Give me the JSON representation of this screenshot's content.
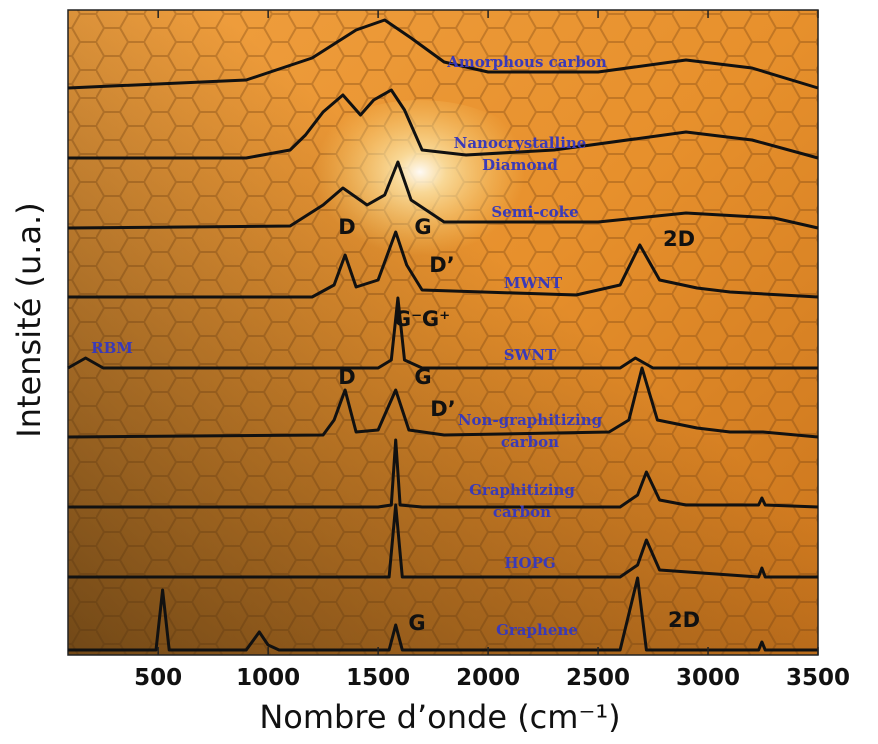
{
  "chart_data": {
    "type": "line",
    "ylabel": "Intensité (u.a.)",
    "xlabel": "Nombre d’onde (cm⁻¹)",
    "xlim": [
      90,
      3500
    ],
    "xticks": [
      500,
      1000,
      1500,
      2000,
      2500,
      3000,
      3500
    ],
    "ylim": [
      0,
      645
    ],
    "series": [
      {
        "name": "Amorphous carbon",
        "color": "#111111",
        "x": [
          90,
          900,
          1200,
          1400,
          1530,
          1650,
          1800,
          2000,
          2500,
          2900,
          3200,
          3500
        ],
        "values": [
          567,
          575,
          597,
          625,
          635,
          617,
          593,
          583,
          583,
          595,
          587,
          567
        ]
      },
      {
        "name": "Nanocrystalline Diamond",
        "color": "#111111",
        "x": [
          90,
          900,
          1100,
          1170,
          1250,
          1340,
          1420,
          1480,
          1560,
          1620,
          1700,
          1900,
          2300,
          2900,
          3200,
          3500
        ],
        "values": [
          497,
          497,
          505,
          520,
          543,
          560,
          540,
          555,
          565,
          545,
          505,
          500,
          505,
          523,
          515,
          497
        ]
      },
      {
        "name": "Semi-coke",
        "color": "#111111",
        "x": [
          90,
          1100,
          1250,
          1340,
          1450,
          1530,
          1590,
          1650,
          1800,
          2500,
          2900,
          3300,
          3500
        ],
        "values": [
          427,
          429,
          450,
          467,
          450,
          460,
          493,
          455,
          433,
          433,
          442,
          437,
          427
        ]
      },
      {
        "name": "MWNT",
        "color": "#111111",
        "x": [
          90,
          1200,
          1300,
          1350,
          1400,
          1500,
          1580,
          1630,
          1700,
          2400,
          2600,
          2690,
          2780,
          2950,
          3100,
          3500
        ],
        "values": [
          358,
          358,
          370,
          400,
          368,
          375,
          423,
          390,
          365,
          360,
          370,
          410,
          375,
          367,
          363,
          358
        ]
      },
      {
        "name": "SWNT",
        "color": "#111111",
        "x": [
          90,
          170,
          250,
          1500,
          1560,
          1590,
          1620,
          1700,
          2600,
          2670,
          2750,
          3500
        ],
        "values": [
          287,
          297,
          287,
          287,
          295,
          357,
          295,
          287,
          287,
          297,
          287,
          287
        ]
      },
      {
        "name": "Non-graphitizing carbon",
        "color": "#111111",
        "x": [
          90,
          1250,
          1300,
          1350,
          1400,
          1500,
          1580,
          1640,
          1800,
          2550,
          2640,
          2700,
          2770,
          2950,
          3100,
          3250,
          3500
        ],
        "values": [
          218,
          220,
          235,
          265,
          223,
          225,
          265,
          225,
          220,
          223,
          235,
          287,
          235,
          227,
          223,
          223,
          218
        ]
      },
      {
        "name": "Graphitizing carbon",
        "color": "#111111",
        "x": [
          90,
          1500,
          1560,
          1580,
          1600,
          1700,
          2600,
          2680,
          2720,
          2780,
          2900,
          3230,
          3245,
          3260,
          3500
        ],
        "values": [
          148,
          148,
          150,
          215,
          150,
          148,
          148,
          160,
          183,
          155,
          150,
          150,
          157,
          150,
          148
        ]
      },
      {
        "name": "HOPG",
        "color": "#111111",
        "x": [
          90,
          1550,
          1580,
          1610,
          2600,
          2680,
          2720,
          2780,
          3230,
          3245,
          3260,
          3500
        ],
        "values": [
          78,
          78,
          150,
          78,
          78,
          90,
          115,
          85,
          78,
          87,
          78,
          78
        ]
      },
      {
        "name": "Graphene",
        "color": "#111111",
        "x": [
          90,
          490,
          520,
          550,
          900,
          960,
          1000,
          1050,
          1550,
          1580,
          1610,
          2600,
          2680,
          2720,
          3230,
          3245,
          3260,
          3500
        ],
        "values": [
          5,
          5,
          65,
          5,
          5,
          23,
          10,
          5,
          5,
          30,
          5,
          5,
          77,
          5,
          5,
          13,
          5,
          5
        ]
      }
    ],
    "annotations": [
      "D",
      "G",
      "D’",
      "2D",
      "G⁻",
      "G⁺",
      "RBM",
      "D",
      "G",
      "D’",
      "G",
      "2D"
    ]
  }
}
